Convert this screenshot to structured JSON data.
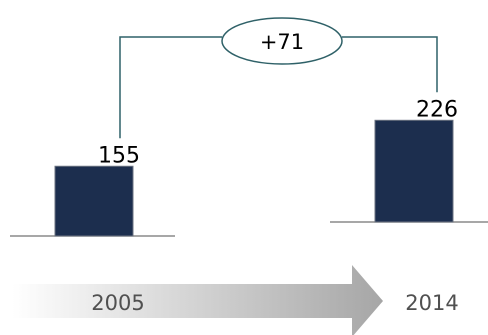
{
  "chart_data": {
    "type": "bar",
    "categories": [
      "2005",
      "2014"
    ],
    "values": [
      155,
      226
    ],
    "difference_label": "+71",
    "colors": {
      "bar": "#1c2e4e",
      "bar_edge": "#6b7381",
      "connector": "#2f6168",
      "baseline": "#8a8a8a",
      "arrow_start": "#ffffff",
      "arrow_end": "#a6a6a6"
    }
  }
}
